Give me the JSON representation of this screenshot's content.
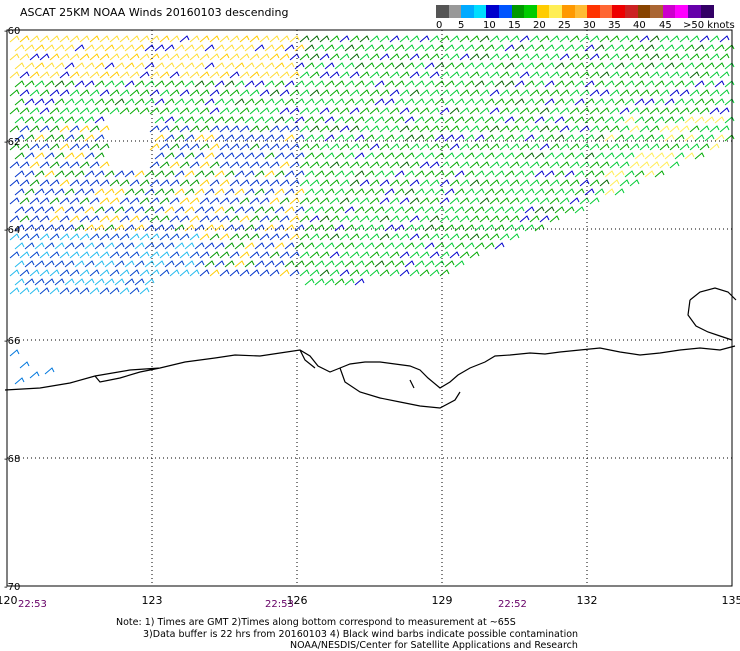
{
  "title": "ASCAT 25KM NOAA Winds 20160103 descending",
  "scale": {
    "colors": [
      "#555555",
      "#999999",
      "#00aaff",
      "#00ddff",
      "#0000cc",
      "#0055ff",
      "#009900",
      "#00cc00",
      "#ffcc00",
      "#ffee55",
      "#ff9900",
      "#ffbb33",
      "#ff3300",
      "#ff6633",
      "#ee0000",
      "#cc2222",
      "#884400",
      "#aa6633",
      "#cc00cc",
      "#ff00ff",
      "#6600aa",
      "#330066"
    ],
    "labels": [
      "0",
      "5",
      "10",
      "15",
      "20",
      "25",
      "30",
      "35",
      "40",
      "45",
      ">50 knots"
    ]
  },
  "axes": {
    "lon_labels": [
      "120",
      "123",
      "126",
      "129",
      "132",
      "135"
    ],
    "lat_labels": [
      "-60",
      "-62",
      "-64",
      "-66",
      "-68",
      "-70"
    ]
  },
  "times": [
    "22:53",
    "22:53",
    "22:52"
  ],
  "notes": {
    "line1": "Note: 1) Times are GMT 2)Times along bottom correspond to measurement at ~65S",
    "line2": "3)Data buffer is 22 hrs from 20160103 4) Black wind barbs indicate possible contamination",
    "line3": "NOAA/NESDIS/Center for Satellite Applications and Research"
  }
}
